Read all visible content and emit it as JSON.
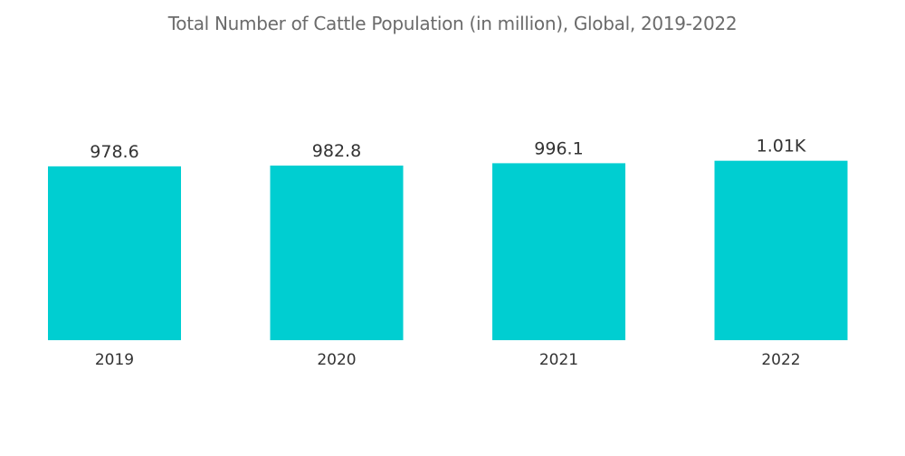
{
  "chart_data": {
    "type": "bar",
    "title": "Total Number of Cattle Population (in million), Global, 2019-2022",
    "xlabel": "",
    "ylabel": "",
    "categories": [
      "2019",
      "2020",
      "2021",
      "2022"
    ],
    "values": [
      978.6,
      982.8,
      996.1,
      1010
    ],
    "value_labels": [
      "978.6",
      "982.8",
      "996.1",
      "1.01K"
    ],
    "ylim": [
      0,
      1100
    ],
    "grid": false,
    "legend": "none",
    "bar_color": "#00CED1"
  }
}
